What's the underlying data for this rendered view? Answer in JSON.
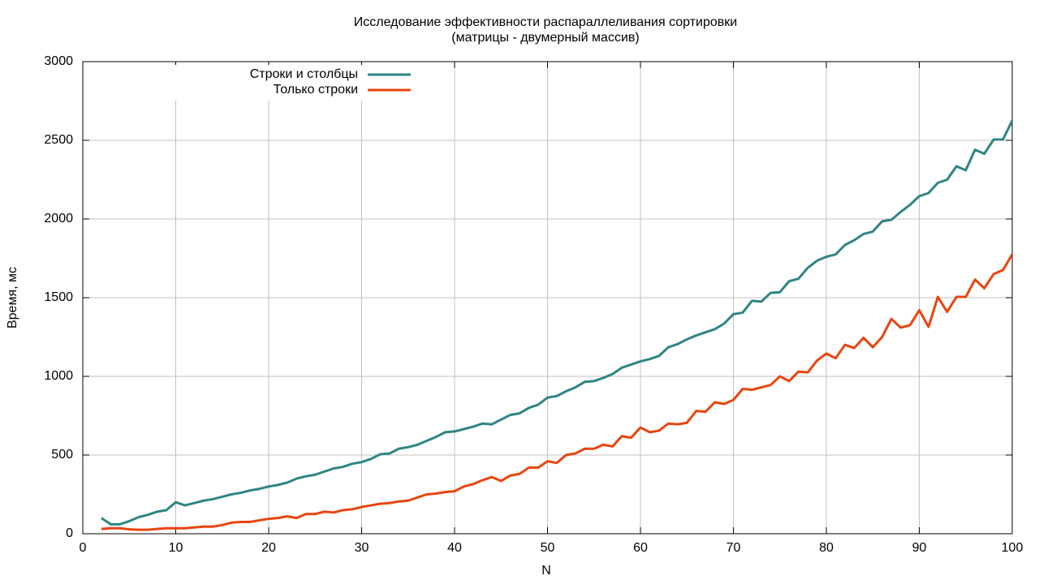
{
  "chart_data": {
    "type": "line",
    "title": "Исследование эффективности распараллеливания сортировки",
    "subtitle": "(матрицы - двумерный массив)",
    "x_label": "N",
    "y_label": "Время, мс",
    "x": [
      2,
      3,
      4,
      5,
      6,
      7,
      8,
      9,
      10,
      11,
      12,
      13,
      14,
      15,
      16,
      17,
      18,
      19,
      20,
      21,
      22,
      23,
      24,
      25,
      26,
      27,
      28,
      29,
      30,
      31,
      32,
      33,
      34,
      35,
      36,
      37,
      38,
      39,
      40,
      41,
      42,
      43,
      44,
      45,
      46,
      47,
      48,
      49,
      50,
      51,
      52,
      53,
      54,
      55,
      56,
      57,
      58,
      59,
      60,
      61,
      62,
      63,
      64,
      65,
      66,
      67,
      68,
      69,
      70,
      71,
      72,
      73,
      74,
      75,
      76,
      77,
      78,
      79,
      80,
      81,
      82,
      83,
      84,
      85,
      86,
      87,
      88,
      89,
      90,
      91,
      92,
      93,
      94,
      95,
      96,
      97,
      98,
      99,
      100
    ],
    "series": [
      {
        "name": "Строки и столбцы",
        "color": "#2f8583",
        "values": [
          100,
          60,
          60,
          80,
          105,
          120,
          140,
          150,
          200,
          180,
          195,
          210,
          220,
          235,
          250,
          260,
          275,
          285,
          300,
          310,
          325,
          350,
          365,
          375,
          395,
          415,
          425,
          445,
          455,
          475,
          505,
          510,
          540,
          550,
          565,
          590,
          615,
          645,
          650,
          665,
          680,
          700,
          695,
          725,
          755,
          765,
          800,
          820,
          865,
          875,
          905,
          930,
          965,
          970,
          990,
          1015,
          1055,
          1075,
          1095,
          1110,
          1130,
          1185,
          1205,
          1235,
          1260,
          1280,
          1300,
          1335,
          1395,
          1405,
          1480,
          1475,
          1530,
          1535,
          1605,
          1620,
          1690,
          1735,
          1760,
          1775,
          1835,
          1865,
          1905,
          1920,
          1985,
          1995,
          2045,
          2090,
          2145,
          2165,
          2230,
          2250,
          2335,
          2310,
          2440,
          2415,
          2505,
          2505,
          2625
        ]
      },
      {
        "name": "Только строки",
        "color": "#e8450f",
        "values": [
          30,
          35,
          35,
          28,
          25,
          25,
          30,
          35,
          35,
          35,
          40,
          45,
          45,
          55,
          70,
          75,
          75,
          85,
          95,
          100,
          110,
          100,
          125,
          125,
          140,
          135,
          150,
          155,
          170,
          180,
          190,
          195,
          205,
          210,
          230,
          250,
          255,
          265,
          270,
          300,
          315,
          340,
          360,
          335,
          370,
          380,
          420,
          420,
          460,
          450,
          500,
          510,
          540,
          540,
          565,
          555,
          620,
          610,
          675,
          645,
          655,
          700,
          695,
          705,
          780,
          775,
          835,
          825,
          850,
          920,
          915,
          930,
          945,
          1000,
          970,
          1030,
          1025,
          1100,
          1145,
          1115,
          1200,
          1180,
          1245,
          1185,
          1250,
          1365,
          1310,
          1325,
          1420,
          1315,
          1505,
          1410,
          1505,
          1505,
          1615,
          1560,
          1650,
          1675,
          1775
        ]
      }
    ],
    "xlim": [
      0,
      100
    ],
    "xticks": [
      0,
      10,
      20,
      30,
      40,
      50,
      60,
      70,
      80,
      90,
      100
    ],
    "ylim": [
      0,
      3000
    ],
    "yticks": [
      0,
      500,
      1000,
      1500,
      2000,
      2500,
      3000
    ],
    "grid": true,
    "legend": "top-left"
  }
}
